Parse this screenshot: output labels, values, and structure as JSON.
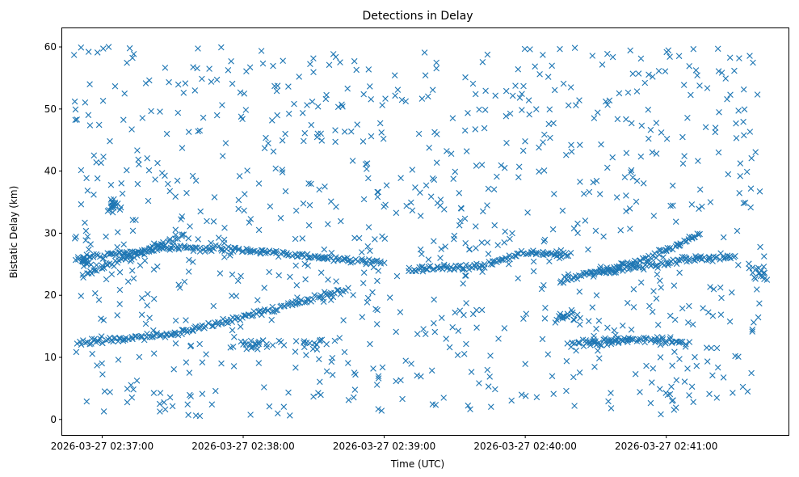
{
  "chart_data": {
    "type": "scatter",
    "title": "Detections in Delay",
    "xlabel": "Time (UTC)",
    "ylabel": "Bistatic Delay (km)",
    "marker": "x",
    "color": "#1f77b4",
    "grid": false,
    "xlim": [
      "2026-03-27 02:36:43",
      "2026-03-27 02:41:52"
    ],
    "ylim": [
      -2.5,
      63
    ],
    "xticks": [
      "2026-03-27 02:37:00",
      "2026-03-27 02:38:00",
      "2026-03-27 02:39:00",
      "2026-03-27 02:40:00",
      "2026-03-27 02:41:00"
    ],
    "yticks": [
      0,
      10,
      20,
      30,
      40,
      50,
      60
    ],
    "tracks": [
      {
        "x": [
          "2026-03-27 02:36:50",
          "2026-03-27 02:37:30",
          "2026-03-27 02:38:00",
          "2026-03-27 02:38:30",
          "2026-03-27 02:38:45"
        ],
        "y": [
          12.3,
          13.7,
          16.5,
          19.5,
          21.0
        ]
      },
      {
        "x": [
          "2026-03-27 02:36:52",
          "2026-03-27 02:37:20",
          "2026-03-27 02:37:35"
        ],
        "y": [
          23.3,
          27.5,
          29.8
        ]
      },
      {
        "x": [
          "2026-03-27 02:36:52",
          "2026-03-27 02:37:30",
          "2026-03-27 02:38:00",
          "2026-03-27 02:38:30",
          "2026-03-27 02:39:00"
        ],
        "y": [
          25.8,
          27.8,
          27.2,
          26.2,
          25.2
        ]
      },
      {
        "x": [
          "2026-03-27 02:39:10",
          "2026-03-27 02:39:40",
          "2026-03-27 02:40:00",
          "2026-03-27 02:40:20"
        ],
        "y": [
          24.2,
          24.6,
          26.8,
          26.6
        ]
      },
      {
        "x": [
          "2026-03-27 02:40:15",
          "2026-03-27 02:40:50",
          "2026-03-27 02:41:15"
        ],
        "y": [
          22.3,
          25.6,
          30.0
        ]
      },
      {
        "x": [
          "2026-03-27 02:40:20",
          "2026-03-27 02:40:50",
          "2026-03-27 02:41:10"
        ],
        "y": [
          12.3,
          12.9,
          12.2
        ]
      },
      {
        "x": [
          "2026-03-27 02:40:30",
          "2026-03-27 02:41:10",
          "2026-03-27 02:41:30"
        ],
        "y": [
          23.6,
          25.8,
          26.2
        ]
      }
    ],
    "clusters": [
      {
        "x": "2026-03-27 02:37:05",
        "y": 34.5,
        "spread_s": 1.5,
        "spread_km": 0.5
      },
      {
        "x": "2026-03-27 02:38:07",
        "y": 12.2,
        "spread_s": 5,
        "spread_km": 0.4
      },
      {
        "x": "2026-03-27 02:38:25",
        "y": 12.0,
        "spread_s": 6,
        "spread_km": 0.5
      },
      {
        "x": "2026-03-27 02:40:18",
        "y": 16.7,
        "spread_s": 3,
        "spread_km": 0.4
      },
      {
        "x": "2026-03-27 02:40:35",
        "y": 13.0,
        "spread_s": 4,
        "spread_km": 1.0
      },
      {
        "x": "2026-03-27 02:41:38",
        "y": 24.0,
        "spread_s": 3,
        "spread_km": 1.0
      },
      {
        "x": "2026-03-27 02:36:52",
        "y": 25.6,
        "spread_s": 1.5,
        "spread_km": 0.5
      }
    ],
    "noise": {
      "count": 900,
      "x_range": [
        "2026-03-27 02:36:48",
        "2026-03-27 02:41:40"
      ],
      "y_range": [
        0.5,
        60
      ]
    }
  }
}
